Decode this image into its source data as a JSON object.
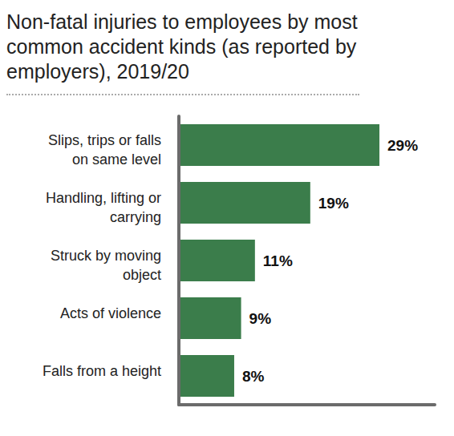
{
  "chart_data": {
    "type": "bar",
    "orientation": "horizontal",
    "title": "Non-fatal injuries to employees by most common accident kinds (as reported by employers), 2019/20",
    "categories": [
      "Slips, trips or falls on same level",
      "Handling, lifting or carrying",
      "Struck by moving object",
      "Acts of violence",
      "Falls from a height"
    ],
    "values": [
      29,
      19,
      11,
      9,
      8
    ],
    "value_labels": [
      "29%",
      "19%",
      "11%",
      "9%",
      "8%"
    ],
    "color": "#3b7d4b",
    "xlim": [
      0,
      37
    ],
    "data_labels": true,
    "tick_labels": "y",
    "grid": false
  }
}
